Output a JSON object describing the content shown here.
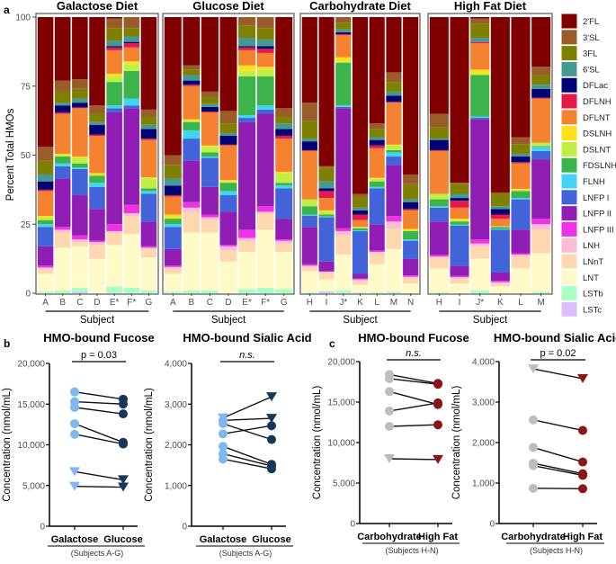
{
  "panel_labels": {
    "a": "a",
    "b": "b",
    "c": "c"
  },
  "components": [
    "2'FL",
    "3'SL",
    "3FL",
    "6'SL",
    "DFLac",
    "DFLNH",
    "DFLNT",
    "DSLNH",
    "DSLNT",
    "FDSLNH",
    "FLNH",
    "LNFP I",
    "LNFP II",
    "LNFP III",
    "LNH",
    "LNnT",
    "LNT",
    "LSTb",
    "LSTc"
  ],
  "component_colors": [
    "#800000",
    "#9a5d2a",
    "#808000",
    "#469990",
    "#000075",
    "#e6194b",
    "#f58231",
    "#ffe119",
    "#bfef45",
    "#3cb44b",
    "#42d4f4",
    "#4363d8",
    "#911eb4",
    "#f032e6",
    "#fabed4",
    "#ffd8b1",
    "#fffac8",
    "#aaffc3",
    "#dcbeff"
  ],
  "chart_data": [
    {
      "type": "bar",
      "stacked": true,
      "title": "Galactose Diet",
      "xlabel": "Subject",
      "ylabel": "Percent Total HMOs",
      "ylim": [
        0,
        100
      ],
      "yticks": [
        "0",
        "25",
        "50",
        "75",
        "100"
      ],
      "categories": [
        "A",
        "B",
        "C",
        "D",
        "E*",
        "F*",
        "G"
      ],
      "values": [
        [
          47,
          5,
          5,
          2.5,
          3,
          0.5,
          9,
          0.5,
          1,
          1.5,
          1,
          7,
          7,
          0.7,
          0.3,
          2,
          6.5,
          0.5,
          0
        ],
        [
          23,
          4,
          4,
          1,
          2.5,
          0.5,
          14.5,
          0.5,
          0.5,
          2.5,
          1,
          4.5,
          17.5,
          1,
          1,
          5.5,
          15.5,
          1,
          0
        ],
        [
          22.5,
          3.5,
          3.5,
          1.5,
          1.7,
          0.3,
          17.5,
          0.5,
          2,
          1.5,
          0.5,
          9.5,
          14.5,
          1.5,
          1,
          1.5,
          15,
          1.5,
          0.5
        ],
        [
          32,
          3,
          3,
          1,
          3.5,
          0.5,
          13.5,
          0.5,
          0.5,
          2.5,
          1.5,
          8,
          11.5,
          0.5,
          1,
          5,
          12.5,
          0,
          0
        ],
        [
          0.5,
          3.5,
          4.5,
          2,
          0.5,
          1,
          8.5,
          1,
          2,
          8.5,
          1,
          1.5,
          40.5,
          2.5,
          0.5,
          4.5,
          15,
          2.5,
          0
        ],
        [
          0,
          4,
          3,
          2,
          0.5,
          1.5,
          5,
          1,
          2.5,
          10,
          2.5,
          1,
          35,
          3,
          1,
          6.5,
          19.5,
          2,
          0
        ],
        [
          33.5,
          2.5,
          3,
          1.5,
          3.5,
          0.5,
          13.5,
          0.5,
          3.5,
          1,
          1,
          10,
          9,
          0.5,
          0.5,
          3,
          12,
          1,
          0
        ]
      ]
    },
    {
      "type": "bar",
      "stacked": true,
      "title": "Glucose Diet",
      "xlabel": "Subject",
      "ylim": [
        0,
        100
      ],
      "categories": [
        "A",
        "B",
        "C",
        "D",
        "E*",
        "F*",
        "G"
      ],
      "values": [
        [
          50,
          3.5,
          5,
          2.5,
          3.5,
          0.5,
          6.5,
          1,
          0.5,
          2,
          1,
          8,
          6,
          0.5,
          0.5,
          2,
          6.5,
          0.5,
          0
        ],
        [
          17.5,
          1.5,
          2,
          2,
          1.5,
          0.5,
          12,
          0.5,
          0.5,
          3,
          3,
          8,
          15,
          2,
          1.5,
          7.5,
          21,
          1,
          0
        ],
        [
          27,
          2,
          2.5,
          1,
          1.7,
          0.3,
          12,
          0.5,
          2,
          1.5,
          0.5,
          10.5,
          10,
          1,
          1,
          4.5,
          21,
          1,
          0
        ],
        [
          34,
          4.5,
          3.5,
          1,
          3.2,
          0.3,
          12.5,
          0.5,
          0.5,
          3,
          1.5,
          6,
          12,
          0.5,
          1.5,
          4,
          11.5,
          0,
          0
        ],
        [
          0,
          3,
          4.5,
          3,
          0.5,
          1,
          5.5,
          2,
          2,
          14,
          1,
          1.5,
          39,
          3,
          1,
          4,
          13.5,
          1.5,
          0
        ],
        [
          0,
          4,
          4,
          2.5,
          1,
          1.5,
          5,
          1,
          2.5,
          10.5,
          1.5,
          1.5,
          33.5,
          2,
          0.5,
          6,
          21,
          2,
          0
        ],
        [
          33,
          3,
          2.5,
          2,
          2.5,
          1,
          12,
          0.5,
          3.5,
          1,
          1,
          11,
          7.5,
          0.5,
          1,
          3,
          13.5,
          1.5,
          0
        ]
      ]
    },
    {
      "type": "bar",
      "stacked": true,
      "title": "Carbohydrate Diet",
      "xlabel": "Subject",
      "ylim": [
        0,
        100
      ],
      "categories": [
        "H",
        "I",
        "J*",
        "K",
        "L",
        "M",
        "N"
      ],
      "values": [
        [
          31,
          6.5,
          6.5,
          1,
          3.2,
          0.3,
          17.5,
          0,
          2.5,
          3,
          0.5,
          4,
          13.5,
          0.5,
          0.5,
          1.5,
          7.7,
          0.3,
          0
        ],
        [
          54,
          0.5,
          5,
          2.5,
          1,
          2.5,
          4.5,
          0.5,
          1,
          0.7,
          0.3,
          16,
          3.5,
          0.2,
          0.3,
          2.5,
          4.2,
          0.3,
          0.5
        ],
        [
          0,
          2,
          2.5,
          1,
          0.7,
          0.3,
          8,
          1.5,
          0.5,
          15.5,
          0.5,
          0.5,
          43.5,
          1,
          1.5,
          7,
          13,
          1,
          0
        ],
        [
          64,
          1,
          4,
          1,
          1.5,
          2,
          2.5,
          0,
          0.5,
          0.7,
          0.3,
          15.5,
          1.7,
          0.3,
          0.5,
          1.5,
          2.7,
          0.3,
          0
        ],
        [
          38.5,
          2,
          3,
          1,
          2,
          1,
          10.7,
          0.3,
          1,
          2,
          0.5,
          13,
          9.5,
          0.5,
          0.5,
          4,
          10.2,
          0.3,
          0
        ],
        [
          20,
          3.5,
          3.5,
          1.5,
          2.2,
          0.3,
          15.2,
          0.3,
          1.7,
          0.8,
          1.5,
          3,
          18.5,
          2,
          2.5,
          7.5,
          15.5,
          0.5,
          0
        ],
        [
          57,
          3.5,
          5.5,
          1,
          2.5,
          0.5,
          6.7,
          0.5,
          0.3,
          3,
          0.5,
          6.5,
          6,
          0.5,
          0.5,
          2,
          3.5,
          0,
          0
        ]
      ]
    },
    {
      "type": "bar",
      "stacked": true,
      "title": "High Fat Diet",
      "xlabel": "Subject",
      "ylim": [
        0,
        100
      ],
      "categories": [
        "H",
        "I",
        "J*",
        "K",
        "L",
        "M"
      ],
      "values": [
        [
          35,
          5,
          4,
          0.5,
          3.7,
          0.3,
          15.5,
          0,
          2,
          2.5,
          0.5,
          5,
          12,
          0.7,
          0.3,
          4,
          8.7,
          0.3,
          0
        ],
        [
          60,
          0.5,
          3.5,
          1.5,
          1,
          2.5,
          4,
          0.5,
          0.5,
          1.2,
          0.3,
          14.5,
          3.7,
          0.5,
          0.3,
          2,
          3.5,
          0,
          0
        ],
        [
          0.5,
          2,
          5,
          1.5,
          0,
          0.5,
          9.5,
          1.5,
          0.5,
          15,
          0.5,
          0.5,
          43.5,
          1.5,
          1,
          4.5,
          11.5,
          1,
          0
        ],
        [
          63.5,
          0.5,
          4.5,
          1,
          2,
          1.5,
          2.7,
          0,
          0.3,
          0.7,
          0.3,
          15.5,
          3,
          0.5,
          0.5,
          1,
          2.5,
          0,
          0
        ],
        [
          43.5,
          2.5,
          3.5,
          1,
          2,
          0.5,
          9.2,
          0.3,
          0.5,
          2.5,
          0.5,
          11,
          8.5,
          0.5,
          0.5,
          4.5,
          9,
          0,
          0
        ],
        [
          18,
          3,
          3.5,
          1.5,
          3.2,
          0.3,
          16,
          0,
          1.2,
          0.3,
          1.5,
          3,
          21.5,
          2,
          2,
          8.5,
          14,
          0.5,
          0
        ]
      ]
    },
    {
      "type": "line",
      "panel": "b",
      "title": "HMO-bound Fucose",
      "ylabel": "Concentration (nmol/mL)",
      "ylim": [
        0,
        20000
      ],
      "yticks": [
        "0",
        "5,000",
        "10,000",
        "15,000",
        "20,000"
      ],
      "categories": [
        "Galactose",
        "Glucose"
      ],
      "group_note": "(Subjects A-G)",
      "stat": "p = 0.03",
      "stat_italic_part": "p",
      "colors": [
        "#7fb8ee",
        "#16375a"
      ],
      "pairs": [
        [
          16500,
          15600,
          "circle",
          "circle"
        ],
        [
          15300,
          15000,
          "circle",
          "circle"
        ],
        [
          14600,
          13800,
          "circle",
          "circle"
        ],
        [
          12600,
          10300,
          "circle",
          "circle"
        ],
        [
          11300,
          10100,
          "circle",
          "circle"
        ],
        [
          6700,
          5700,
          "triangle",
          "triangle"
        ],
        [
          4900,
          4800,
          "triangle",
          "triangle"
        ]
      ]
    },
    {
      "type": "line",
      "panel": "b",
      "title": "HMO-bound Sialic Acid",
      "ylabel": "Concentration (nmol/mL)",
      "ylim": [
        0,
        4000
      ],
      "yticks": [
        "0",
        "1,000",
        "2,000",
        "3,000",
        "4,000"
      ],
      "categories": [
        "Galactose",
        "Glucose"
      ],
      "group_note": "(Subjects A-G)",
      "stat": "n.s.",
      "colors": [
        "#7fb8ee",
        "#16375a"
      ],
      "pairs": [
        [
          2660,
          3180,
          "triangle",
          "triangle"
        ],
        [
          2600,
          2650,
          "circle",
          "triangle"
        ],
        [
          2520,
          2130,
          "circle",
          "circle"
        ],
        [
          2270,
          2470,
          "circle",
          "circle"
        ],
        [
          1960,
          1520,
          "circle",
          "circle"
        ],
        [
          1780,
          1480,
          "circle",
          "circle"
        ],
        [
          1650,
          1410,
          "circle",
          "circle"
        ]
      ]
    },
    {
      "type": "line",
      "panel": "c",
      "title": "HMO-bound Fucose",
      "ylabel": "Concentration (nmol/mL)",
      "ylim": [
        0,
        20000
      ],
      "yticks": [
        "0",
        "5,000",
        "10,000",
        "15,000",
        "20,000"
      ],
      "categories": [
        "Carbohydrate",
        "High Fat"
      ],
      "group_note": "(Subjects H-N)",
      "stat": "n.s.",
      "colors": [
        "#bdbdbd",
        "#8b1414"
      ],
      "pairs": [
        [
          18400,
          17300,
          "circle",
          "circle"
        ],
        [
          17900,
          17200,
          "circle",
          "circle"
        ],
        [
          16300,
          14700,
          "circle",
          "circle"
        ],
        [
          13900,
          14900,
          "circle",
          "circle"
        ],
        [
          12000,
          12200,
          "circle",
          "circle"
        ],
        [
          8000,
          7900,
          "triangle",
          "triangle"
        ]
      ]
    },
    {
      "type": "line",
      "panel": "c",
      "title": "HMO-bound Sialic Acid",
      "ylabel": "Concentration (nmol/mL)",
      "ylim": [
        0,
        4000
      ],
      "yticks": [
        "0",
        "1,000",
        "2,000",
        "3,000",
        "4,000"
      ],
      "categories": [
        "Carbohydrate",
        "High Fat"
      ],
      "group_note": "(Subjects H-N)",
      "stat": "p = 0.02",
      "stat_italic_part": "p",
      "colors": [
        "#bdbdbd",
        "#8b1414"
      ],
      "pairs": [
        [
          3820,
          3580,
          "triangle",
          "triangle"
        ],
        [
          2560,
          2300,
          "circle",
          "circle"
        ],
        [
          1880,
          1520,
          "circle",
          "circle"
        ],
        [
          1490,
          1230,
          "circle",
          "circle"
        ],
        [
          1430,
          1190,
          "circle",
          "circle"
        ],
        [
          870,
          860,
          "circle",
          "circle"
        ]
      ]
    }
  ]
}
